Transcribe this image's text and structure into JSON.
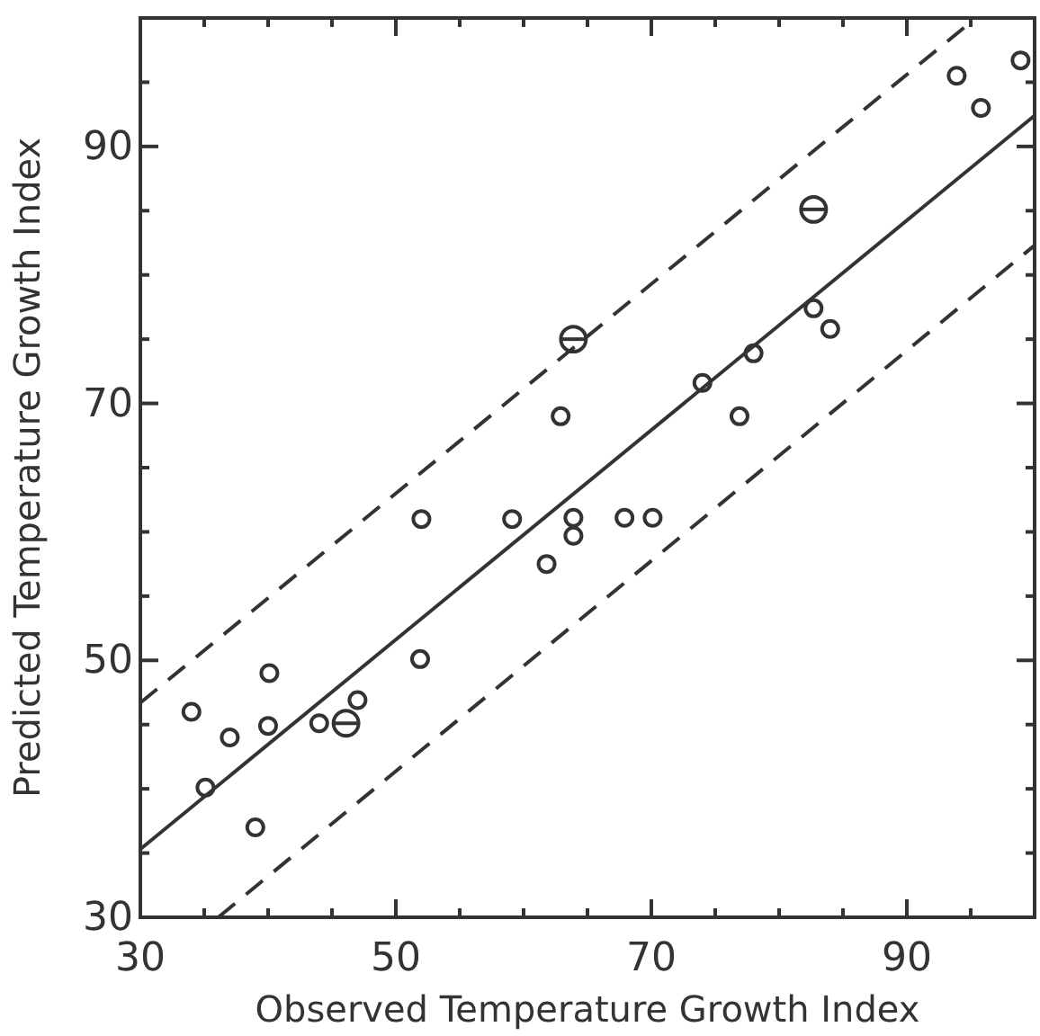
{
  "chart_data": {
    "type": "scatter",
    "xlabel": "Observed Temperature Growth Index",
    "ylabel": "Predicted Temperature Growth Index",
    "xlim": [
      30,
      100
    ],
    "ylim": [
      30,
      100
    ],
    "xticks": [
      30,
      {
        "value": 35,
        "label": null
      },
      {
        "value": 40,
        "label": null
      },
      {
        "value": 45,
        "label": null
      },
      50,
      {
        "value": 55,
        "label": null
      },
      {
        "value": 60,
        "label": null
      },
      {
        "value": 65,
        "label": null
      },
      70,
      {
        "value": 75,
        "label": null
      },
      {
        "value": 80,
        "label": null
      },
      {
        "value": 85,
        "label": null
      },
      90,
      {
        "value": 95,
        "label": null
      }
    ],
    "yticks": [
      30,
      {
        "value": 35,
        "label": null
      },
      {
        "value": 40,
        "label": null
      },
      {
        "value": 45,
        "label": null
      },
      50,
      {
        "value": 55,
        "label": null
      },
      {
        "value": 60,
        "label": null
      },
      {
        "value": 65,
        "label": null
      },
      70,
      {
        "value": 75,
        "label": null
      },
      {
        "value": 80,
        "label": null
      },
      {
        "value": 85,
        "label": null
      },
      90,
      {
        "value": 95,
        "label": null
      }
    ],
    "grid": false,
    "series": [
      {
        "marker": "circle",
        "color": "#333333",
        "x": [
          34.0,
          35.1,
          37.0,
          39.0,
          40.0,
          40.1,
          44.0,
          47.0,
          51.9,
          52.0,
          59.1,
          63.9,
          63.9,
          61.8,
          67.9,
          70.1,
          62.9,
          74.0,
          76.9,
          78.0,
          82.7,
          84.0,
          93.9,
          95.8,
          98.9
        ],
        "values": [
          46.0,
          40.1,
          44.0,
          37.0,
          44.9,
          49.0,
          45.1,
          46.9,
          50.1,
          61.0,
          61.0,
          61.1,
          59.7,
          57.5,
          61.1,
          61.1,
          69.0,
          71.6,
          69.0,
          73.9,
          77.4,
          75.8,
          95.5,
          93.0,
          96.7
        ]
      },
      {
        "marker": "circle",
        "color": "#333333",
        "x": [
          46.1,
          63.9,
          82.7
        ],
        "values": [
          45.1,
          75.0,
          85.1
        ]
      },
      {
        "type": "line",
        "line_style": "solid",
        "color": "#333333",
        "x": [
          30,
          100
        ],
        "values": [
          35.3,
          92.4
        ]
      },
      {
        "type": "line",
        "line_style": "dashed",
        "color": "#333333",
        "x": [
          30,
          95.4
        ],
        "values": [
          46.7,
          100
        ]
      },
      {
        "type": "line",
        "line_style": "dashed",
        "color": "#333333",
        "x": [
          36.1,
          100
        ],
        "values": [
          30,
          82.3
        ]
      }
    ]
  }
}
